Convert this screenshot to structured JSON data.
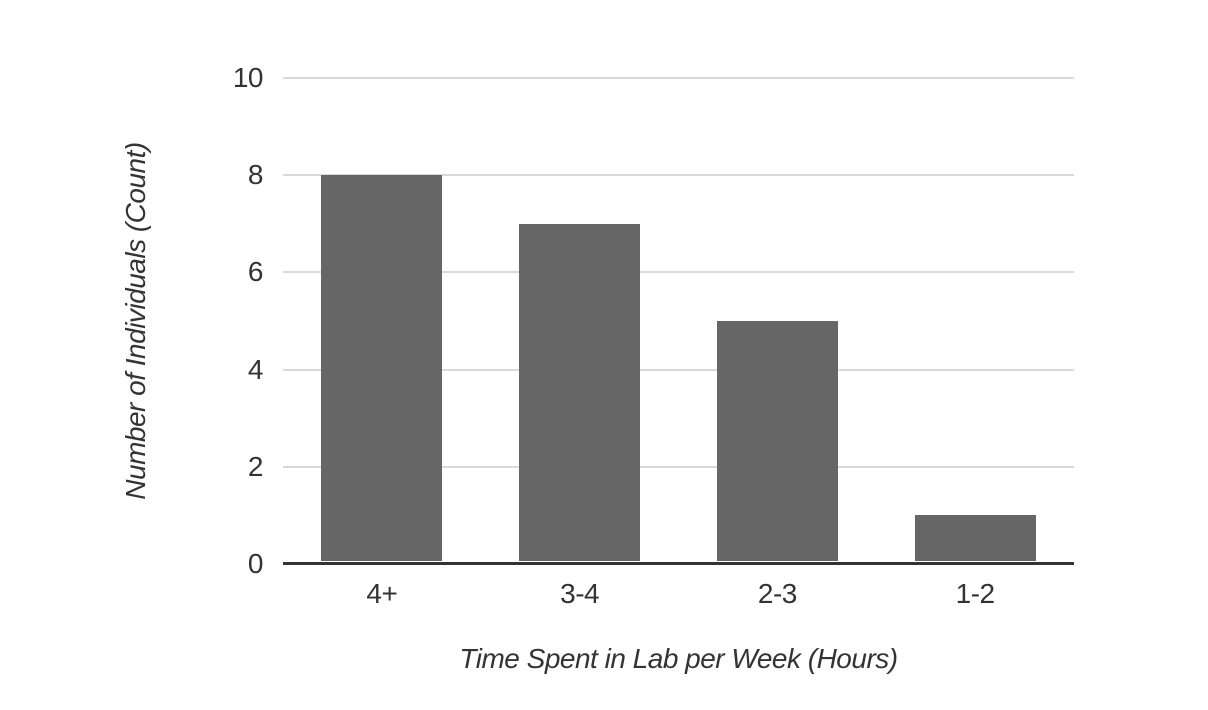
{
  "chart_data": {
    "type": "bar",
    "title": "",
    "categories": [
      "4+",
      "3-4",
      "2-3",
      "1-2"
    ],
    "values": [
      8,
      7,
      5,
      1
    ],
    "xlabel": "Time Spent in Lab per Week (Hours)",
    "ylabel": "Number of Individuals (Count)",
    "ylim": [
      0,
      10
    ],
    "yticks": [
      0,
      2,
      4,
      6,
      8,
      10
    ],
    "grid": "horizontal-only",
    "legend": "none",
    "bar_color": "#666666",
    "gridline_color": "#d9d9d9",
    "axis_line_color": "#333333",
    "text_color": "#333333",
    "background_color": "#ffffff"
  }
}
